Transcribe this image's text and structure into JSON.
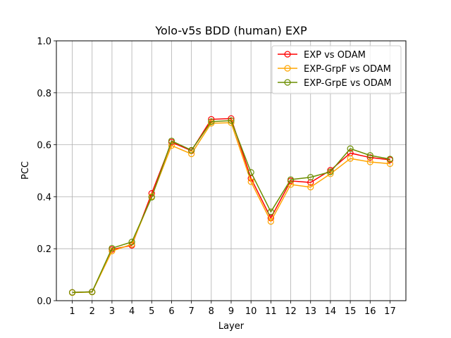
{
  "chart_data": {
    "type": "line",
    "title": "Yolo-v5s BDD (human) EXP",
    "xlabel": "Layer",
    "ylabel": "PCC",
    "x": [
      1,
      2,
      3,
      4,
      5,
      6,
      7,
      8,
      9,
      10,
      11,
      12,
      13,
      14,
      15,
      16,
      17
    ],
    "xticks": [
      "1",
      "2",
      "3",
      "4",
      "5",
      "6",
      "7",
      "8",
      "9",
      "10",
      "11",
      "12",
      "13",
      "14",
      "15",
      "16",
      "17"
    ],
    "ylim": [
      0.0,
      1.0
    ],
    "yticks": [
      "0.0",
      "0.2",
      "0.4",
      "0.6",
      "0.8",
      "1.0"
    ],
    "grid": true,
    "legend_position": "top-right",
    "series": [
      {
        "name": "EXP vs ODAM",
        "color": "#ff0000",
        "values": [
          0.032,
          0.034,
          0.197,
          0.213,
          0.413,
          0.61,
          0.577,
          0.698,
          0.701,
          0.471,
          0.318,
          0.461,
          0.455,
          0.502,
          0.568,
          0.551,
          0.542
        ]
      },
      {
        "name": "EXP-GrpF vs ODAM",
        "color": "#ffa500",
        "values": [
          0.031,
          0.033,
          0.191,
          0.217,
          0.401,
          0.597,
          0.565,
          0.683,
          0.685,
          0.458,
          0.305,
          0.447,
          0.437,
          0.488,
          0.547,
          0.534,
          0.527
        ]
      },
      {
        "name": "EXP-GrpE vs ODAM",
        "color": "#6b8e00",
        "values": [
          0.032,
          0.034,
          0.202,
          0.226,
          0.398,
          0.615,
          0.579,
          0.689,
          0.693,
          0.494,
          0.342,
          0.466,
          0.475,
          0.496,
          0.585,
          0.559,
          0.545
        ]
      }
    ]
  }
}
